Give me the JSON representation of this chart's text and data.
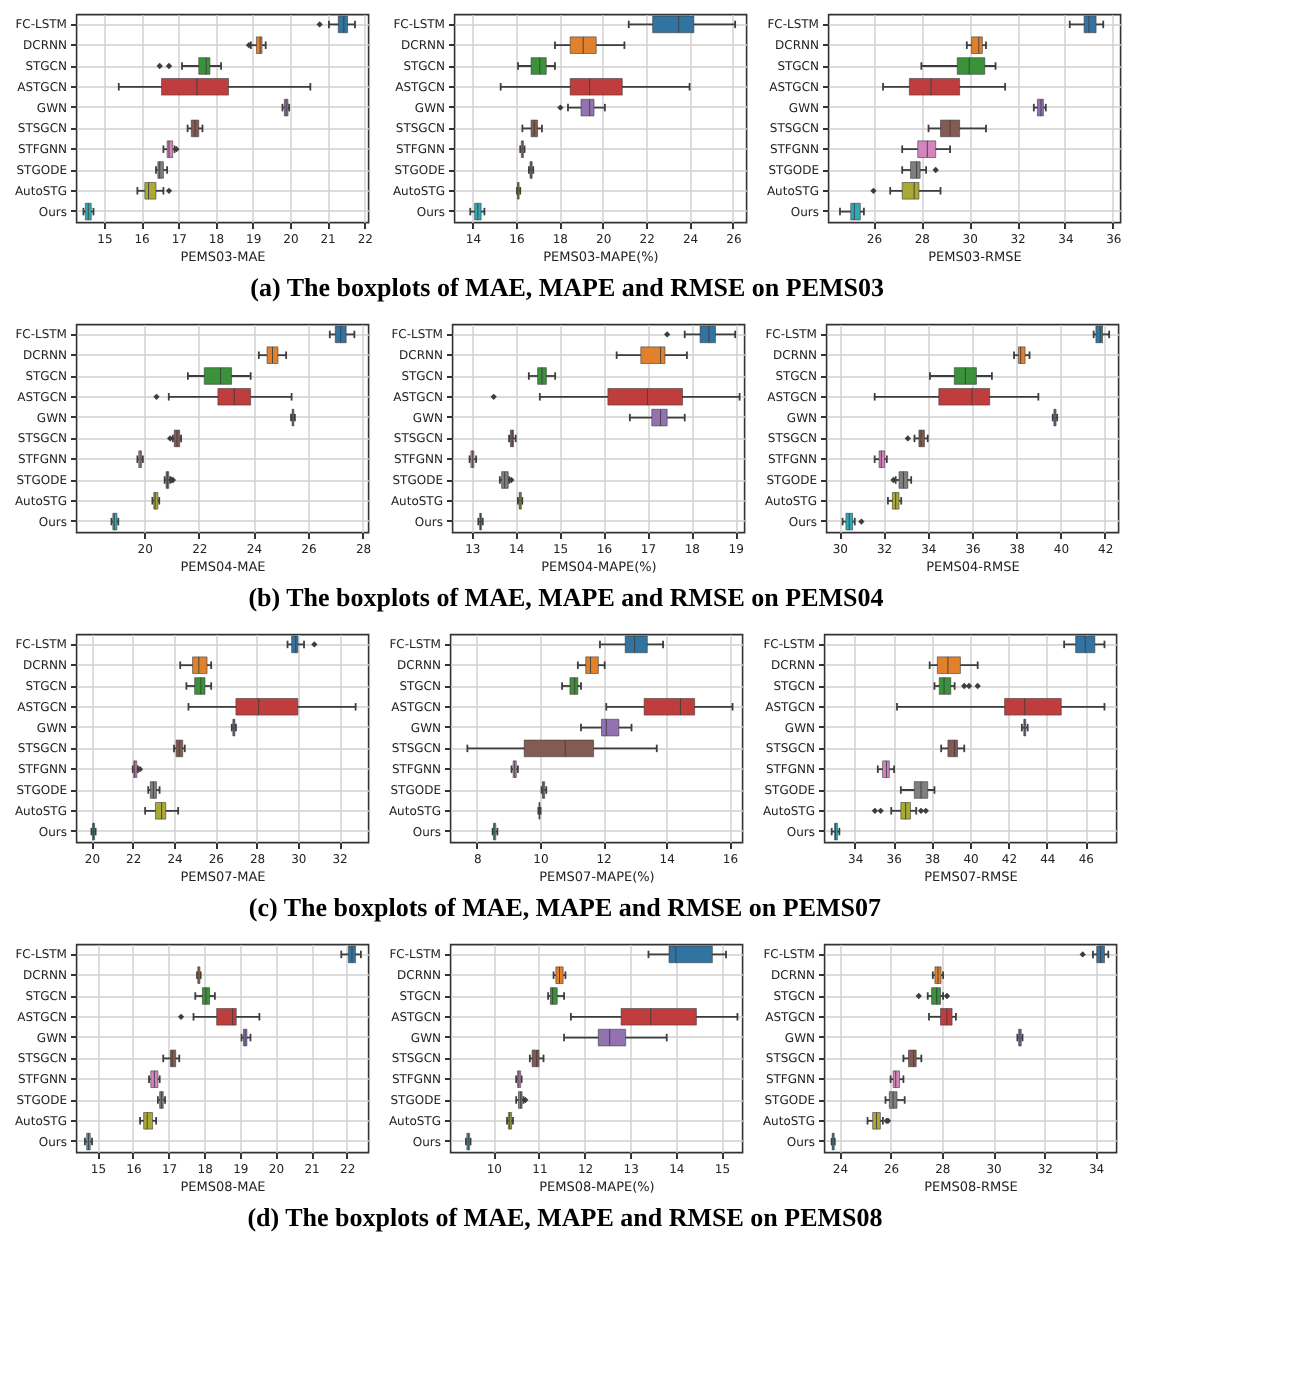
{
  "chart_data": [
    {
      "type": "box",
      "orientation": "horizontal",
      "grid": true,
      "xlabel": "PEMS03-MAE",
      "xlim": [
        14.25,
        22.1
      ],
      "xticks": [
        15,
        16,
        17,
        18,
        19,
        20,
        21,
        22
      ],
      "annotations": [
        "(a) The boxplots of MAE, MAPE and RMSE on PEMS03"
      ],
      "categories": [
        "FC-LSTM",
        "DCRNN",
        "STGCN",
        "ASTGCN",
        "GWN",
        "STSGCN",
        "STFGNN",
        "STGODE",
        "AutoSTG",
        "Ours"
      ],
      "colors": [
        "#3274a1",
        "#e1812c",
        "#3a923a",
        "#c03d3e",
        "#9372b2",
        "#845b53",
        "#d684bd",
        "#7f7f7f",
        "#a9aa35",
        "#2eabb8"
      ],
      "boxes": [
        {
          "low": 21.05,
          "q1": 21.3,
          "median": 21.45,
          "q3": 21.55,
          "high": 21.75,
          "outliers": [
            20.8
          ]
        },
        {
          "low": 18.95,
          "q1": 19.1,
          "median": 19.2,
          "q3": 19.25,
          "high": 19.35,
          "outliers": [
            18.9
          ]
        },
        {
          "low": 17.1,
          "q1": 17.55,
          "median": 17.75,
          "q3": 17.85,
          "high": 18.15,
          "outliers": [
            16.5,
            16.75
          ]
        },
        {
          "low": 15.4,
          "q1": 16.55,
          "median": 17.5,
          "q3": 18.35,
          "high": 20.55
        },
        {
          "low": 19.8,
          "q1": 19.85,
          "median": 19.9,
          "q3": 19.95,
          "high": 19.98
        },
        {
          "low": 17.25,
          "q1": 17.35,
          "median": 17.45,
          "q3": 17.55,
          "high": 17.65
        },
        {
          "low": 16.6,
          "q1": 16.7,
          "median": 16.75,
          "q3": 16.85,
          "high": 16.9,
          "outliers": [
            16.95
          ]
        },
        {
          "low": 16.4,
          "q1": 16.45,
          "median": 16.5,
          "q3": 16.6,
          "high": 16.7
        },
        {
          "low": 15.9,
          "q1": 16.1,
          "median": 16.2,
          "q3": 16.4,
          "high": 16.6,
          "outliers": [
            16.75
          ]
        },
        {
          "low": 14.45,
          "q1": 14.5,
          "median": 14.58,
          "q3": 14.66,
          "high": 14.72
        }
      ]
    },
    {
      "type": "box",
      "orientation": "horizontal",
      "grid": true,
      "xlabel": "PEMS03-MAPE(%)",
      "xlim": [
        13.15,
        26.6
      ],
      "xticks": [
        14,
        16,
        18,
        20,
        22,
        24,
        26
      ],
      "categories": [
        "FC-LSTM",
        "DCRNN",
        "STGCN",
        "ASTGCN",
        "GWN",
        "STSGCN",
        "STFGNN",
        "STGODE",
        "AutoSTG",
        "Ours"
      ],
      "colors": [
        "#3274a1",
        "#e1812c",
        "#3a923a",
        "#c03d3e",
        "#9372b2",
        "#845b53",
        "#d684bd",
        "#7f7f7f",
        "#a9aa35",
        "#2eabb8"
      ],
      "boxes": [
        {
          "low": 21.2,
          "q1": 22.3,
          "median": 23.5,
          "q3": 24.2,
          "high": 26.1
        },
        {
          "low": 17.8,
          "q1": 18.5,
          "median": 19.1,
          "q3": 19.7,
          "high": 21.0
        },
        {
          "low": 16.1,
          "q1": 16.7,
          "median": 17.1,
          "q3": 17.4,
          "high": 17.8
        },
        {
          "low": 15.3,
          "q1": 18.5,
          "median": 19.4,
          "q3": 20.9,
          "high": 24.0
        },
        {
          "low": 18.4,
          "q1": 19.0,
          "median": 19.4,
          "q3": 19.6,
          "high": 20.1,
          "outliers": [
            18.05
          ]
        },
        {
          "low": 16.3,
          "q1": 16.7,
          "median": 16.85,
          "q3": 17.0,
          "high": 17.2
        },
        {
          "low": 16.2,
          "q1": 16.25,
          "median": 16.3,
          "q3": 16.35,
          "high": 16.4
        },
        {
          "low": 16.6,
          "q1": 16.65,
          "median": 16.7,
          "q3": 16.75,
          "high": 16.8
        },
        {
          "low": 16.05,
          "q1": 16.08,
          "median": 16.1,
          "q3": 16.15,
          "high": 16.2
        },
        {
          "low": 13.9,
          "q1": 14.1,
          "median": 14.25,
          "q3": 14.4,
          "high": 14.55
        }
      ]
    },
    {
      "type": "box",
      "orientation": "horizontal",
      "grid": true,
      "xlabel": "PEMS03-RMSE",
      "xlim": [
        24.1,
        36.3
      ],
      "xticks": [
        26,
        28,
        30,
        32,
        34,
        36
      ],
      "categories": [
        "FC-LSTM",
        "DCRNN",
        "STGCN",
        "ASTGCN",
        "GWN",
        "STSGCN",
        "STFGNN",
        "STGODE",
        "AutoSTG",
        "Ours"
      ],
      "colors": [
        "#3274a1",
        "#e1812c",
        "#3a923a",
        "#c03d3e",
        "#9372b2",
        "#845b53",
        "#d684bd",
        "#7f7f7f",
        "#a9aa35",
        "#2eabb8"
      ],
      "boxes": [
        {
          "low": 34.2,
          "q1": 34.8,
          "median": 35.0,
          "q3": 35.3,
          "high": 35.6
        },
        {
          "low": 29.9,
          "q1": 30.1,
          "median": 30.4,
          "q3": 30.55,
          "high": 30.7
        },
        {
          "low": 28.0,
          "q1": 29.5,
          "median": 30.0,
          "q3": 30.65,
          "high": 31.1
        },
        {
          "low": 26.4,
          "q1": 27.5,
          "median": 28.4,
          "q3": 29.6,
          "high": 31.5
        },
        {
          "low": 32.7,
          "q1": 32.85,
          "median": 33.0,
          "q3": 33.1,
          "high": 33.2
        },
        {
          "low": 28.3,
          "q1": 28.8,
          "median": 29.2,
          "q3": 29.6,
          "high": 30.7
        },
        {
          "low": 27.2,
          "q1": 27.85,
          "median": 28.25,
          "q3": 28.6,
          "high": 29.2
        },
        {
          "low": 27.2,
          "q1": 27.55,
          "median": 27.8,
          "q3": 27.95,
          "high": 28.2,
          "outliers": [
            28.6
          ]
        },
        {
          "low": 26.7,
          "q1": 27.2,
          "median": 27.7,
          "q3": 27.9,
          "high": 28.8,
          "outliers": [
            26.0
          ]
        },
        {
          "low": 24.6,
          "q1": 25.05,
          "median": 25.2,
          "q3": 25.45,
          "high": 25.6
        }
      ]
    },
    {
      "type": "box",
      "orientation": "horizontal",
      "grid": true,
      "xlabel": "PEMS04-MAE",
      "xlim": [
        17.5,
        28.2
      ],
      "xticks": [
        20,
        22,
        24,
        26,
        28
      ],
      "annotations": [
        "(b) The boxplots of MAE, MAPE and RMSE on PEMS04"
      ],
      "categories": [
        "FC-LSTM",
        "DCRNN",
        "STGCN",
        "ASTGCN",
        "GWN",
        "STSGCN",
        "STFGNN",
        "STGODE",
        "AutoSTG",
        "Ours"
      ],
      "colors": [
        "#3274a1",
        "#e1812c",
        "#3a923a",
        "#c03d3e",
        "#9372b2",
        "#845b53",
        "#d684bd",
        "#7f7f7f",
        "#a9aa35",
        "#2eabb8"
      ],
      "boxes": [
        {
          "low": 26.8,
          "q1": 27.0,
          "median": 27.2,
          "q3": 27.4,
          "high": 27.7
        },
        {
          "low": 24.2,
          "q1": 24.5,
          "median": 24.7,
          "q3": 24.9,
          "high": 25.2
        },
        {
          "low": 21.6,
          "q1": 22.2,
          "median": 22.8,
          "q3": 23.2,
          "high": 23.9
        },
        {
          "low": 20.9,
          "q1": 22.7,
          "median": 23.3,
          "q3": 23.9,
          "high": 25.4,
          "outliers": [
            20.45
          ]
        },
        {
          "low": 25.38,
          "q1": 25.42,
          "median": 25.45,
          "q3": 25.48,
          "high": 25.52
        },
        {
          "low": 21.05,
          "q1": 21.1,
          "median": 21.2,
          "q3": 21.3,
          "high": 21.35,
          "outliers": [
            20.95
          ]
        },
        {
          "low": 19.75,
          "q1": 19.8,
          "median": 19.85,
          "q3": 19.9,
          "high": 19.95
        },
        {
          "low": 20.75,
          "q1": 20.8,
          "median": 20.85,
          "q3": 20.9,
          "high": 20.95,
          "outliers": [
            21.0,
            21.05
          ]
        },
        {
          "low": 20.3,
          "q1": 20.35,
          "median": 20.4,
          "q3": 20.5,
          "high": 20.55
        },
        {
          "low": 18.8,
          "q1": 18.85,
          "median": 18.9,
          "q3": 19.0,
          "high": 19.05
        }
      ]
    },
    {
      "type": "box",
      "orientation": "horizontal",
      "grid": true,
      "xlabel": "PEMS04-MAPE(%)",
      "xlim": [
        12.55,
        19.2
      ],
      "xticks": [
        13,
        14,
        15,
        16,
        17,
        18,
        19
      ],
      "categories": [
        "FC-LSTM",
        "DCRNN",
        "STGCN",
        "ASTGCN",
        "GWN",
        "STSGCN",
        "STFGNN",
        "STGODE",
        "AutoSTG",
        "Ours"
      ],
      "colors": [
        "#3274a1",
        "#e1812c",
        "#3a923a",
        "#c03d3e",
        "#9372b2",
        "#845b53",
        "#d684bd",
        "#7f7f7f",
        "#a9aa35",
        "#2eabb8"
      ],
      "boxes": [
        {
          "low": 17.85,
          "q1": 18.2,
          "median": 18.4,
          "q3": 18.55,
          "high": 19.0,
          "outliers": [
            17.45
          ]
        },
        {
          "low": 16.3,
          "q1": 16.85,
          "median": 17.3,
          "q3": 17.4,
          "high": 17.9
        },
        {
          "low": 14.3,
          "q1": 14.5,
          "median": 14.6,
          "q3": 14.7,
          "high": 14.9
        },
        {
          "low": 14.55,
          "q1": 16.1,
          "median": 17.0,
          "q3": 17.8,
          "high": 19.1,
          "outliers": [
            13.5
          ]
        },
        {
          "low": 16.6,
          "q1": 17.1,
          "median": 17.3,
          "q3": 17.45,
          "high": 17.85
        },
        {
          "low": 13.85,
          "q1": 13.88,
          "median": 13.92,
          "q3": 13.95,
          "high": 14.0
        },
        {
          "low": 12.95,
          "q1": 12.98,
          "median": 13.02,
          "q3": 13.05,
          "high": 13.1
        },
        {
          "low": 13.64,
          "q1": 13.68,
          "median": 13.75,
          "q3": 13.83,
          "high": 13.85,
          "outliers": [
            13.9
          ]
        },
        {
          "low": 14.05,
          "q1": 14.08,
          "median": 14.1,
          "q3": 14.13,
          "high": 14.15
        },
        {
          "low": 13.15,
          "q1": 13.18,
          "median": 13.2,
          "q3": 13.22,
          "high": 13.25
        }
      ]
    },
    {
      "type": "box",
      "orientation": "horizontal",
      "grid": true,
      "xlabel": "PEMS04-RMSE",
      "xlim": [
        29.4,
        42.6
      ],
      "xticks": [
        30,
        32,
        34,
        36,
        38,
        40,
        42
      ],
      "categories": [
        "FC-LSTM",
        "DCRNN",
        "STGCN",
        "ASTGCN",
        "GWN",
        "STSGCN",
        "STFGNN",
        "STGODE",
        "AutoSTG",
        "Ours"
      ],
      "colors": [
        "#3274a1",
        "#e1812c",
        "#3a923a",
        "#c03d3e",
        "#9372b2",
        "#845b53",
        "#d684bd",
        "#7f7f7f",
        "#a9aa35",
        "#2eabb8"
      ],
      "boxes": [
        {
          "low": 41.5,
          "q1": 41.6,
          "median": 41.8,
          "q3": 41.9,
          "high": 42.2
        },
        {
          "low": 37.9,
          "q1": 38.1,
          "median": 38.2,
          "q3": 38.4,
          "high": 38.6
        },
        {
          "low": 34.1,
          "q1": 35.2,
          "median": 35.7,
          "q3": 36.2,
          "high": 36.9
        },
        {
          "low": 31.6,
          "q1": 34.5,
          "median": 36.0,
          "q3": 36.8,
          "high": 39.0
        },
        {
          "low": 39.65,
          "q1": 39.7,
          "median": 39.75,
          "q3": 39.8,
          "high": 39.85
        },
        {
          "low": 33.4,
          "q1": 33.6,
          "median": 33.7,
          "q3": 33.85,
          "high": 34.0,
          "outliers": [
            33.1
          ]
        },
        {
          "low": 31.6,
          "q1": 31.8,
          "median": 31.9,
          "q3": 32.05,
          "high": 32.15
        },
        {
          "low": 32.55,
          "q1": 32.7,
          "median": 32.9,
          "q3": 33.1,
          "high": 33.25,
          "outliers": [
            32.45
          ]
        },
        {
          "low": 32.2,
          "q1": 32.4,
          "median": 32.55,
          "q3": 32.7,
          "high": 32.8
        },
        {
          "low": 30.15,
          "q1": 30.3,
          "median": 30.45,
          "q3": 30.6,
          "high": 30.7,
          "outliers": [
            31.0
          ]
        }
      ]
    },
    {
      "type": "box",
      "orientation": "horizontal",
      "grid": true,
      "xlabel": "PEMS07-MAE",
      "xlim": [
        19.25,
        33.4
      ],
      "xticks": [
        20,
        22,
        24,
        26,
        28,
        30,
        32
      ],
      "annotations": [
        "(c) The boxplots of MAE, MAPE and RMSE on PEMS07"
      ],
      "categories": [
        "FC-LSTM",
        "DCRNN",
        "STGCN",
        "ASTGCN",
        "GWN",
        "STSGCN",
        "STFGNN",
        "STGODE",
        "AutoSTG",
        "Ours"
      ],
      "colors": [
        "#3274a1",
        "#e1812c",
        "#3a923a",
        "#c03d3e",
        "#9372b2",
        "#845b53",
        "#d684bd",
        "#7f7f7f",
        "#a9aa35",
        "#2eabb8"
      ],
      "boxes": [
        {
          "low": 29.5,
          "q1": 29.7,
          "median": 29.9,
          "q3": 30.0,
          "high": 30.3,
          "outliers": [
            30.8
          ]
        },
        {
          "low": 24.3,
          "q1": 24.9,
          "median": 25.2,
          "q3": 25.6,
          "high": 25.8
        },
        {
          "low": 24.6,
          "q1": 25.0,
          "median": 25.3,
          "q3": 25.5,
          "high": 25.8
        },
        {
          "low": 24.7,
          "q1": 27.0,
          "median": 28.1,
          "q3": 30.0,
          "high": 32.8
        },
        {
          "low": 26.8,
          "q1": 26.85,
          "median": 26.9,
          "q3": 26.95,
          "high": 27.0
        },
        {
          "low": 24.0,
          "q1": 24.1,
          "median": 24.25,
          "q3": 24.42,
          "high": 24.52
        },
        {
          "low": 22.0,
          "q1": 22.05,
          "median": 22.1,
          "q3": 22.2,
          "high": 22.25,
          "outliers": [
            22.35
          ]
        },
        {
          "low": 22.75,
          "q1": 22.85,
          "median": 23.0,
          "q3": 23.15,
          "high": 23.3
        },
        {
          "low": 22.6,
          "q1": 23.1,
          "median": 23.4,
          "q3": 23.6,
          "high": 24.2
        },
        {
          "low": 20.0,
          "q1": 20.05,
          "median": 20.1,
          "q3": 20.15,
          "high": 20.2
        }
      ]
    },
    {
      "type": "box",
      "orientation": "horizontal",
      "grid": true,
      "xlabel": "PEMS07-MAPE(%)",
      "xlim": [
        7.15,
        16.4
      ],
      "xticks": [
        8,
        10,
        12,
        14,
        16
      ],
      "categories": [
        "FC-LSTM",
        "DCRNN",
        "STGCN",
        "ASTGCN",
        "GWN",
        "STSGCN",
        "STFGNN",
        "STGODE",
        "AutoSTG",
        "Ours"
      ],
      "colors": [
        "#3274a1",
        "#e1812c",
        "#3a923a",
        "#c03d3e",
        "#9372b2",
        "#845b53",
        "#d684bd",
        "#7f7f7f",
        "#a9aa35",
        "#2eabb8"
      ],
      "boxes": [
        {
          "low": 11.9,
          "q1": 12.7,
          "median": 13.0,
          "q3": 13.4,
          "high": 13.9
        },
        {
          "low": 11.2,
          "q1": 11.45,
          "median": 11.6,
          "q3": 11.85,
          "high": 12.05
        },
        {
          "low": 10.7,
          "q1": 10.95,
          "median": 11.1,
          "q3": 11.2,
          "high": 11.3
        },
        {
          "low": 12.1,
          "q1": 13.3,
          "median": 14.45,
          "q3": 14.9,
          "high": 16.1
        },
        {
          "low": 11.3,
          "q1": 11.95,
          "median": 12.1,
          "q3": 12.5,
          "high": 12.9
        },
        {
          "low": 7.7,
          "q1": 9.5,
          "median": 10.8,
          "q3": 11.7,
          "high": 13.7
        },
        {
          "low": 9.1,
          "q1": 9.15,
          "median": 9.2,
          "q3": 9.25,
          "high": 9.3
        },
        {
          "low": 10.05,
          "q1": 10.08,
          "median": 10.1,
          "q3": 10.15,
          "high": 10.2
        },
        {
          "low": 9.95,
          "q1": 9.97,
          "median": 9.98,
          "q3": 10.0,
          "high": 10.02
        },
        {
          "low": 8.5,
          "q1": 8.53,
          "median": 8.55,
          "q3": 8.6,
          "high": 8.65
        }
      ]
    },
    {
      "type": "box",
      "orientation": "horizontal",
      "grid": true,
      "xlabel": "PEMS07-RMSE",
      "xlim": [
        32.4,
        47.6
      ],
      "xticks": [
        34,
        36,
        38,
        40,
        42,
        44,
        46
      ],
      "categories": [
        "FC-LSTM",
        "DCRNN",
        "STGCN",
        "ASTGCN",
        "GWN",
        "STSGCN",
        "STFGNN",
        "STGODE",
        "AutoSTG",
        "Ours"
      ],
      "colors": [
        "#3274a1",
        "#e1812c",
        "#3a923a",
        "#c03d3e",
        "#9372b2",
        "#845b53",
        "#d684bd",
        "#7f7f7f",
        "#a9aa35",
        "#2eabb8"
      ],
      "boxes": [
        {
          "low": 44.9,
          "q1": 45.5,
          "median": 46.0,
          "q3": 46.5,
          "high": 47.0
        },
        {
          "low": 37.9,
          "q1": 38.3,
          "median": 38.85,
          "q3": 39.5,
          "high": 40.4
        },
        {
          "low": 38.15,
          "q1": 38.4,
          "median": 38.65,
          "q3": 39.0,
          "high": 39.2,
          "outliers": [
            39.7,
            39.95,
            40.4
          ]
        },
        {
          "low": 36.2,
          "q1": 41.8,
          "median": 42.85,
          "q3": 44.75,
          "high": 47.0
        },
        {
          "low": 42.7,
          "q1": 42.8,
          "median": 42.85,
          "q3": 42.9,
          "high": 43.0
        },
        {
          "low": 38.5,
          "q1": 38.85,
          "median": 39.2,
          "q3": 39.35,
          "high": 39.7
        },
        {
          "low": 35.2,
          "q1": 35.45,
          "median": 35.65,
          "q3": 35.8,
          "high": 36.05
        },
        {
          "low": 36.4,
          "q1": 37.1,
          "median": 37.45,
          "q3": 37.8,
          "high": 38.15
        },
        {
          "low": 35.9,
          "q1": 36.4,
          "median": 36.65,
          "q3": 36.9,
          "high": 37.2,
          "outliers": [
            35.05,
            35.35,
            37.45,
            37.7
          ]
        },
        {
          "low": 32.8,
          "q1": 32.95,
          "median": 33.0,
          "q3": 33.1,
          "high": 33.2
        }
      ]
    },
    {
      "type": "box",
      "orientation": "horizontal",
      "grid": true,
      "xlabel": "PEMS08-MAE",
      "xlim": [
        14.4,
        22.6
      ],
      "xticks": [
        15,
        16,
        17,
        18,
        19,
        20,
        21,
        22
      ],
      "annotations": [
        "(d) The boxplots of MAE, MAPE and RMSE on PEMS08"
      ],
      "categories": [
        "FC-LSTM",
        "DCRNN",
        "STGCN",
        "ASTGCN",
        "GWN",
        "STSGCN",
        "STFGNN",
        "STGODE",
        "AutoSTG",
        "Ours"
      ],
      "colors": [
        "#3274a1",
        "#e1812c",
        "#3a923a",
        "#c03d3e",
        "#9372b2",
        "#845b53",
        "#d684bd",
        "#7f7f7f",
        "#a9aa35",
        "#2eabb8"
      ],
      "boxes": [
        {
          "low": 21.85,
          "q1": 22.05,
          "median": 22.15,
          "q3": 22.25,
          "high": 22.4
        },
        {
          "low": 17.8,
          "q1": 17.82,
          "median": 17.85,
          "q3": 17.88,
          "high": 17.9
        },
        {
          "low": 17.75,
          "q1": 17.95,
          "median": 18.05,
          "q3": 18.15,
          "high": 18.3
        },
        {
          "low": 17.7,
          "q1": 18.35,
          "median": 18.8,
          "q3": 18.9,
          "high": 19.55,
          "outliers": [
            17.35
          ]
        },
        {
          "low": 19.05,
          "q1": 19.1,
          "median": 19.15,
          "q3": 19.2,
          "high": 19.3
        },
        {
          "low": 16.85,
          "q1": 17.05,
          "median": 17.1,
          "q3": 17.2,
          "high": 17.3
        },
        {
          "low": 16.45,
          "q1": 16.5,
          "median": 16.6,
          "q3": 16.7,
          "high": 16.75
        },
        {
          "low": 16.7,
          "q1": 16.75,
          "median": 16.8,
          "q3": 16.85,
          "high": 16.9
        },
        {
          "low": 16.2,
          "q1": 16.3,
          "median": 16.4,
          "q3": 16.55,
          "high": 16.65
        },
        {
          "low": 14.65,
          "q1": 14.7,
          "median": 14.75,
          "q3": 14.8,
          "high": 14.85
        }
      ]
    },
    {
      "type": "box",
      "orientation": "horizontal",
      "grid": true,
      "xlabel": "PEMS08-MAPE(%)",
      "xlim": [
        9.05,
        15.45
      ],
      "xticks": [
        10,
        11,
        12,
        13,
        14,
        15
      ],
      "categories": [
        "FC-LSTM",
        "DCRNN",
        "STGCN",
        "ASTGCN",
        "GWN",
        "STSGCN",
        "STFGNN",
        "STGODE",
        "AutoSTG",
        "Ours"
      ],
      "colors": [
        "#3274a1",
        "#e1812c",
        "#3a923a",
        "#c03d3e",
        "#9372b2",
        "#845b53",
        "#d684bd",
        "#7f7f7f",
        "#a9aa35",
        "#2eabb8"
      ],
      "boxes": [
        {
          "low": 13.4,
          "q1": 13.85,
          "median": 14.0,
          "q3": 14.8,
          "high": 15.1
        },
        {
          "low": 11.32,
          "q1": 11.37,
          "median": 11.45,
          "q3": 11.53,
          "high": 11.58
        },
        {
          "low": 11.2,
          "q1": 11.25,
          "median": 11.3,
          "q3": 11.4,
          "high": 11.55
        },
        {
          "low": 11.7,
          "q1": 12.8,
          "median": 13.45,
          "q3": 14.45,
          "high": 15.35
        },
        {
          "low": 11.55,
          "q1": 12.3,
          "median": 12.55,
          "q3": 12.9,
          "high": 13.8
        },
        {
          "low": 10.8,
          "q1": 10.85,
          "median": 10.95,
          "q3": 11.0,
          "high": 11.1
        },
        {
          "low": 10.5,
          "q1": 10.53,
          "median": 10.56,
          "q3": 10.6,
          "high": 10.62
        },
        {
          "low": 10.5,
          "q1": 10.55,
          "median": 10.6,
          "q3": 10.63,
          "high": 10.66,
          "outliers": [
            10.7
          ]
        },
        {
          "low": 10.3,
          "q1": 10.33,
          "median": 10.36,
          "q3": 10.4,
          "high": 10.43
        },
        {
          "low": 9.4,
          "q1": 9.42,
          "median": 9.45,
          "q3": 9.48,
          "high": 9.5
        }
      ]
    },
    {
      "type": "box",
      "orientation": "horizontal",
      "grid": true,
      "xlabel": "PEMS08-RMSE",
      "xlim": [
        23.4,
        34.8
      ],
      "xticks": [
        24,
        26,
        28,
        30,
        32,
        34
      ],
      "categories": [
        "FC-LSTM",
        "DCRNN",
        "STGCN",
        "ASTGCN",
        "GWN",
        "STSGCN",
        "STFGNN",
        "STGODE",
        "AutoSTG",
        "Ours"
      ],
      "colors": [
        "#3274a1",
        "#e1812c",
        "#3a923a",
        "#c03d3e",
        "#9372b2",
        "#845b53",
        "#d684bd",
        "#7f7f7f",
        "#a9aa35",
        "#2eabb8"
      ],
      "boxes": [
        {
          "low": 33.9,
          "q1": 34.05,
          "median": 34.2,
          "q3": 34.35,
          "high": 34.5,
          "outliers": [
            33.5
          ]
        },
        {
          "low": 27.65,
          "q1": 27.73,
          "median": 27.85,
          "q3": 27.97,
          "high": 28.05
        },
        {
          "low": 27.45,
          "q1": 27.6,
          "median": 27.8,
          "q3": 27.95,
          "high": 28.05,
          "outliers": [
            27.1,
            28.2
          ]
        },
        {
          "low": 27.5,
          "q1": 27.95,
          "median": 28.2,
          "q3": 28.4,
          "high": 28.55
        },
        {
          "low": 30.95,
          "q1": 31.0,
          "median": 31.05,
          "q3": 31.1,
          "high": 31.15
        },
        {
          "low": 26.5,
          "q1": 26.7,
          "median": 26.9,
          "q3": 27.0,
          "high": 27.2
        },
        {
          "low": 26.0,
          "q1": 26.1,
          "median": 26.2,
          "q3": 26.35,
          "high": 26.5
        },
        {
          "low": 25.8,
          "q1": 25.95,
          "median": 26.1,
          "q3": 26.25,
          "high": 26.55
        },
        {
          "low": 25.1,
          "q1": 25.3,
          "median": 25.45,
          "q3": 25.6,
          "high": 25.7,
          "outliers": [
            25.85,
            25.9
          ]
        },
        {
          "low": 23.7,
          "q1": 23.72,
          "median": 23.75,
          "q3": 23.8,
          "high": 23.82
        }
      ]
    }
  ]
}
